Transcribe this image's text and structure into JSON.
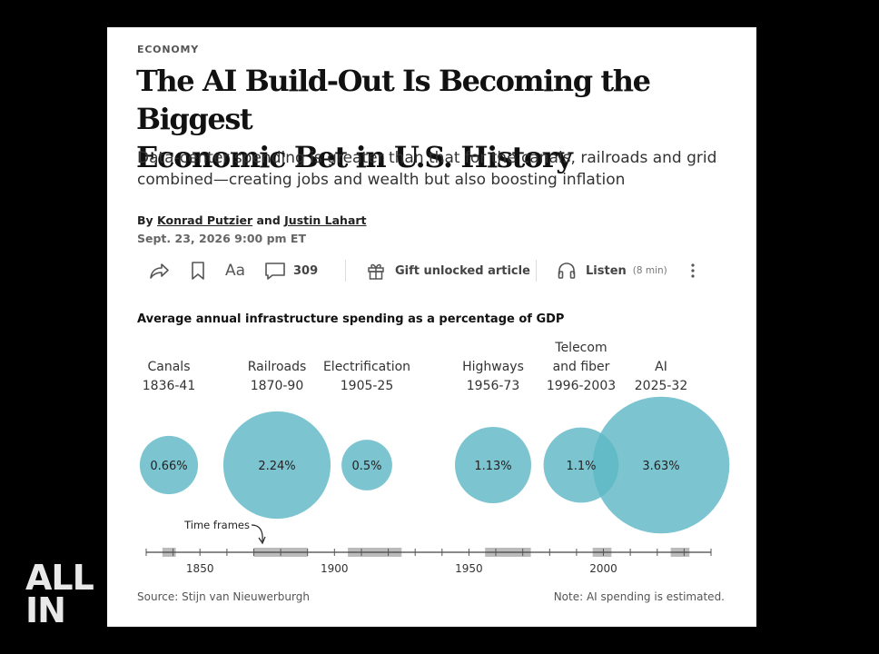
{
  "brand": {
    "line1": "ALL",
    "line2": "IN"
  },
  "article": {
    "section": "ECONOMY",
    "headline_line1": "The AI Build-Out Is Becoming the Biggest",
    "headline_line2": "Economic Bet in U.S. History",
    "dek_line1": "Data-center spending is greater than that for the canals, railroads and grid",
    "dek_line2": "combined—creating jobs and wealth but also boosting inflation",
    "by": "By",
    "author1": "Konrad Putzier",
    "and": "and",
    "author2": "Justin Lahart",
    "date": "Sept. 23, 2026 9:00 pm ET"
  },
  "toolbar": {
    "share_icon": "share-arrow-icon",
    "bookmark_icon": "bookmark-icon",
    "text_size_label": "Aa",
    "comment_icon": "speech-bubble-icon",
    "comment_count": "309",
    "gift_icon": "gift-icon",
    "gift_label": "Gift unlocked article",
    "listen_icon": "headphones-icon",
    "listen_label": "Listen",
    "listen_duration": "(8 min)",
    "more_icon": "vertical-dots-icon"
  },
  "chart_data": {
    "type": "bubble",
    "title": "Average annual infrastructure spending as a percentage of GDP",
    "unit": "%",
    "bubble_color": "#5fb8c6",
    "series": [
      {
        "name_line1": "",
        "name_line2": "Canals",
        "period": "1836-41",
        "value": 0.66,
        "label": "0.66%",
        "start": 1836,
        "end": 1841
      },
      {
        "name_line1": "",
        "name_line2": "Railroads",
        "period": "1870-90",
        "value": 2.24,
        "label": "2.24%",
        "start": 1870,
        "end": 1890
      },
      {
        "name_line1": "",
        "name_line2": "Electrification",
        "period": "1905-25",
        "value": 0.5,
        "label": "0.5%",
        "start": 1905,
        "end": 1925
      },
      {
        "name_line1": "",
        "name_line2": "Highways",
        "period": "1956-73",
        "value": 1.13,
        "label": "1.13%",
        "start": 1956,
        "end": 1973
      },
      {
        "name_line1": "Telecom",
        "name_line2": "and fiber",
        "period": "1996-2003",
        "value": 1.1,
        "label": "1.1%",
        "start": 1996,
        "end": 2003
      },
      {
        "name_line1": "",
        "name_line2": "AI",
        "period": "2025-32",
        "value": 3.63,
        "label": "3.63%",
        "start": 2025,
        "end": 2032
      }
    ],
    "timeline": {
      "label": "Time frames",
      "xlim": [
        1830,
        2040
      ],
      "ticks": [
        1850,
        1900,
        1950,
        2000
      ]
    },
    "source": "Source: Stijn van Nieuwerburgh",
    "note": "Note: AI spending is estimated."
  }
}
